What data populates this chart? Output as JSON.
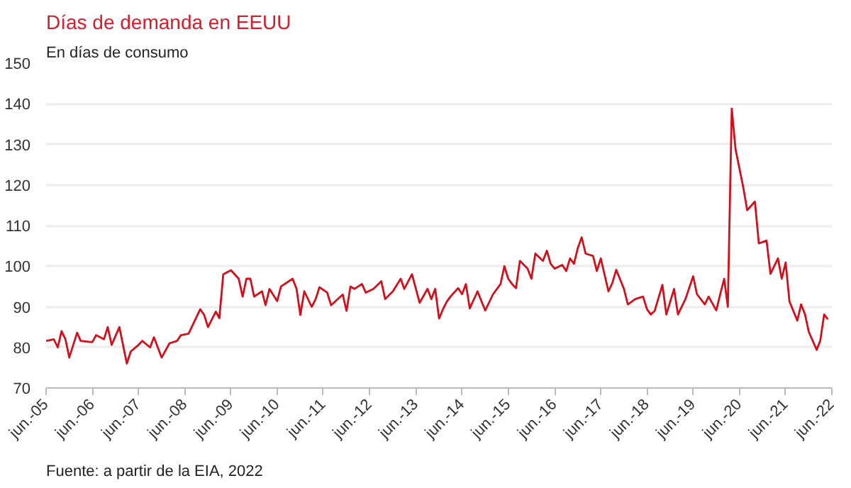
{
  "chart_data": {
    "type": "line",
    "title": "Días de demanda en EEUU",
    "subtitle": "En días de consumo",
    "annotations": [
      "Fuente: a partir de la EIA, 2022"
    ],
    "x": [
      "2005-06",
      "2005-08",
      "2005-09",
      "2005-10",
      "2005-11",
      "2005-12",
      "2006-02",
      "2006-03",
      "2006-06",
      "2006-07",
      "2006-09",
      "2006-10",
      "2006-11",
      "2007-01",
      "2007-03",
      "2007-04",
      "2007-06",
      "2007-07",
      "2007-09",
      "2007-10",
      "2007-12",
      "2008-02",
      "2008-04",
      "2008-05",
      "2008-07",
      "2008-10",
      "2008-11",
      "2008-12",
      "2009-02",
      "2009-03",
      "2009-04",
      "2009-06",
      "2009-08",
      "2009-09",
      "2009-10",
      "2009-11",
      "2009-12",
      "2010-02",
      "2010-03",
      "2010-04",
      "2010-06",
      "2010-07",
      "2010-10",
      "2010-11",
      "2010-12",
      "2011-01",
      "2011-03",
      "2011-04",
      "2011-05",
      "2011-07",
      "2011-08",
      "2011-11",
      "2011-12",
      "2012-01",
      "2012-02",
      "2012-04",
      "2012-05",
      "2012-07",
      "2012-09",
      "2012-10",
      "2012-12",
      "2013-02",
      "2013-03",
      "2013-05",
      "2013-07",
      "2013-09",
      "2013-10",
      "2013-11",
      "2013-12",
      "2014-01",
      "2014-02",
      "2014-03",
      "2014-05",
      "2014-06",
      "2014-07",
      "2014-08",
      "2014-10",
      "2014-12",
      "2015-02",
      "2015-04",
      "2015-05",
      "2015-06",
      "2015-07",
      "2015-08",
      "2015-09",
      "2015-11",
      "2015-12",
      "2016-01",
      "2016-03",
      "2016-04",
      "2016-05",
      "2016-06",
      "2016-08",
      "2016-09",
      "2016-10",
      "2016-11",
      "2016-12",
      "2017-01",
      "2017-02",
      "2017-04",
      "2017-05",
      "2017-06",
      "2017-08",
      "2017-09",
      "2017-10",
      "2017-12",
      "2018-01",
      "2018-03",
      "2018-05",
      "2018-06",
      "2018-07",
      "2018-08",
      "2018-10",
      "2018-11",
      "2019-01",
      "2019-02",
      "2019-04",
      "2019-06",
      "2019-07",
      "2019-09",
      "2019-10",
      "2019-12",
      "2020-01",
      "2020-02",
      "2020-03",
      "2020-04",
      "2020-05",
      "2020-07",
      "2020-08",
      "2020-10",
      "2020-11",
      "2021-01",
      "2021-02",
      "2021-04",
      "2021-05",
      "2021-06",
      "2021-07",
      "2021-09",
      "2021-10",
      "2021-11",
      "2021-12",
      "2022-02",
      "2022-03",
      "2022-04",
      "2022-05"
    ],
    "series": [
      {
        "color": "#d0101c",
        "values": [
          81.6,
          82,
          80,
          84,
          82,
          77.5,
          83.6,
          81.6,
          81.3,
          83,
          82,
          85,
          80.6,
          85,
          76,
          79,
          80.6,
          81.6,
          80,
          82.5,
          77.5,
          81,
          81.6,
          83,
          83.4,
          89.4,
          88,
          85,
          88.8,
          87.2,
          98,
          99,
          96.9,
          92.5,
          96.9,
          96.9,
          92.5,
          93.8,
          90.4,
          94.4,
          91.4,
          95,
          96.9,
          94.4,
          88,
          93.8,
          90,
          91.9,
          94.8,
          93.5,
          90.4,
          93,
          89,
          95,
          94.4,
          95.6,
          93.5,
          94.4,
          96.3,
          91.9,
          93.8,
          96.9,
          94.4,
          98,
          91,
          94.4,
          91.9,
          94.4,
          87.1,
          89.4,
          91.3,
          92.5,
          94.6,
          93.1,
          95.6,
          89.6,
          93.8,
          89.1,
          93.1,
          95.6,
          100,
          96.9,
          95.6,
          94.6,
          101.3,
          99.4,
          96.9,
          103.1,
          101.3,
          103.8,
          100.6,
          99.4,
          100.3,
          98.8,
          101.9,
          100.6,
          104.4,
          107.1,
          103.1,
          102.5,
          98.8,
          101.9,
          93.8,
          95.9,
          99.1,
          94.4,
          90.6,
          91.9,
          92.5,
          89.4,
          88.1,
          89,
          95.4,
          88.1,
          94.4,
          88.1,
          91.9,
          97.5,
          93.1,
          90.6,
          92.5,
          89.1,
          93.1,
          96.9,
          90,
          138.8,
          128.8,
          119.4,
          113.8,
          115.9,
          105.6,
          106.3,
          98.1,
          101.9,
          96.9,
          100.9,
          91.3,
          86.6,
          90.6,
          88.1,
          83.8,
          79.4,
          81.6,
          88.1,
          86.9
        ]
      }
    ],
    "xlim": [
      "2005-06",
      "2022-06"
    ],
    "xticks": [
      {
        "value": "2005-06",
        "label": "jun.-05"
      },
      {
        "value": "2006-06",
        "label": "jun.-06"
      },
      {
        "value": "2007-06",
        "label": "jun.-07"
      },
      {
        "value": "2008-06",
        "label": "jun.-08"
      },
      {
        "value": "2009-06",
        "label": "jun.-09"
      },
      {
        "value": "2010-06",
        "label": "jun.-10"
      },
      {
        "value": "2011-06",
        "label": "jun.-11"
      },
      {
        "value": "2012-06",
        "label": "jun.-12"
      },
      {
        "value": "2013-06",
        "label": "jun.-13"
      },
      {
        "value": "2014-06",
        "label": "jun.-14"
      },
      {
        "value": "2015-06",
        "label": "jun.-15"
      },
      {
        "value": "2016-06",
        "label": "jun.-16"
      },
      {
        "value": "2017-06",
        "label": "jun.-17"
      },
      {
        "value": "2018-06",
        "label": "jun.-18"
      },
      {
        "value": "2019-06",
        "label": "jun.-19"
      },
      {
        "value": "2020-06",
        "label": "jun.-20"
      },
      {
        "value": "2021-06",
        "label": "jun.-21"
      },
      {
        "value": "2022-06",
        "label": "jun.-22"
      }
    ],
    "ylim": [
      70,
      150
    ],
    "yticks": [
      70,
      80,
      90,
      100,
      110,
      120,
      130,
      140,
      150
    ],
    "grid": "y",
    "marker": "none",
    "line_style": "solid"
  }
}
